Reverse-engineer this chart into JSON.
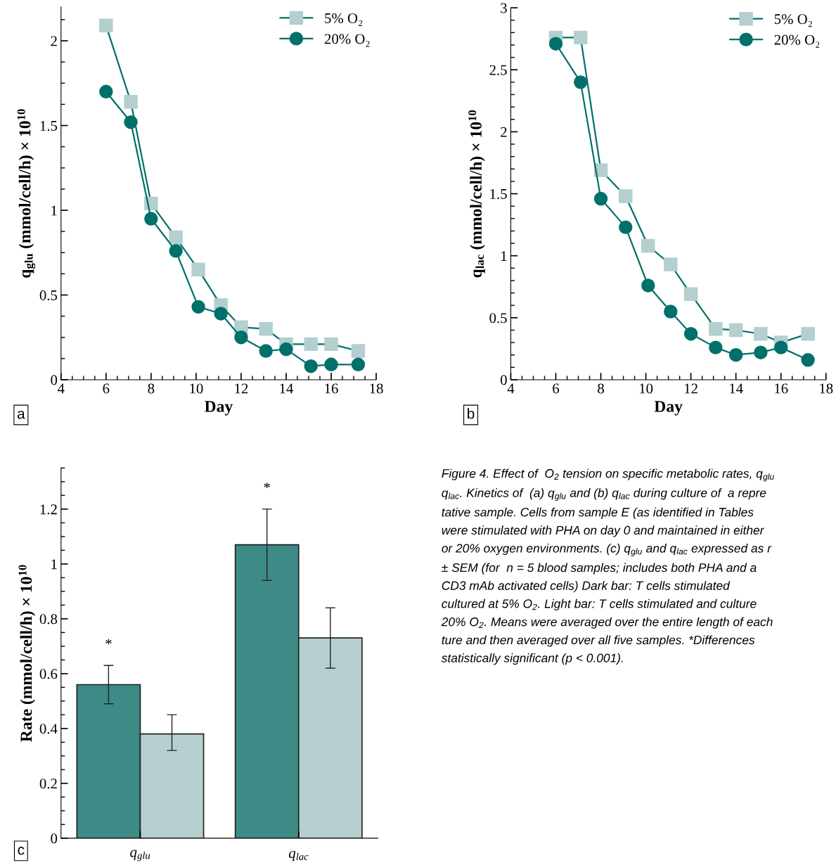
{
  "chart_data": [
    {
      "type": "line",
      "xlabel": "Day",
      "ylabel": "q$_{glu}$ (mmol/cell/h) × 10$^{10}$",
      "xlim": [
        4,
        18
      ],
      "xticks": [
        4,
        6,
        8,
        10,
        12,
        14,
        16,
        18
      ],
      "ylim": [
        0,
        2.2
      ],
      "yticks": [
        0,
        0.5,
        1,
        1.5,
        2
      ],
      "legend": "top right",
      "annotations": [
        "a"
      ],
      "series": [
        {
          "name": "5% O₂",
          "color": "#b3cfcf",
          "marker": "square",
          "x": [
            6,
            7.1,
            8,
            9.1,
            10.1,
            11.1,
            12,
            13.1,
            14,
            15.1,
            16,
            17.2
          ],
          "values": [
            2.09,
            1.64,
            1.04,
            0.84,
            0.65,
            0.44,
            0.31,
            0.3,
            0.21,
            0.21,
            0.21,
            0.17
          ]
        },
        {
          "name": "20% O₂",
          "color": "#00706b",
          "marker": "circle",
          "x": [
            6,
            7.1,
            8,
            9.1,
            10.1,
            11.1,
            12,
            13.1,
            14,
            15.1,
            16,
            17.2
          ],
          "values": [
            1.7,
            1.52,
            0.95,
            0.76,
            0.43,
            0.39,
            0.25,
            0.17,
            0.18,
            0.08,
            0.09,
            0.09
          ]
        }
      ]
    },
    {
      "type": "line",
      "xlabel": "Day",
      "ylabel": "q$_{lac}$ (mmol/cell/h) × 10$^{10}$",
      "xlim": [
        4,
        18
      ],
      "xticks": [
        4,
        6,
        8,
        10,
        12,
        14,
        16,
        18
      ],
      "ylim": [
        0,
        3
      ],
      "yticks": [
        0,
        0.5,
        1,
        1.5,
        2,
        2.5,
        3
      ],
      "legend": "top right",
      "annotations": [
        "b"
      ],
      "series": [
        {
          "name": "5% O₂",
          "color": "#b3cfcf",
          "marker": "square",
          "x": [
            6,
            7.1,
            8,
            9.1,
            10.1,
            11.1,
            12,
            13.1,
            14,
            15.1,
            16,
            17.2
          ],
          "values": [
            2.76,
            2.76,
            1.69,
            1.48,
            1.08,
            0.93,
            0.69,
            0.41,
            0.4,
            0.37,
            0.3,
            0.37
          ]
        },
        {
          "name": "20% O₂",
          "color": "#00706b",
          "marker": "circle",
          "x": [
            6,
            7.1,
            8,
            9.1,
            10.1,
            11.1,
            12,
            13.1,
            14,
            15.1,
            16,
            17.2
          ],
          "values": [
            2.71,
            2.4,
            1.46,
            1.23,
            0.76,
            0.55,
            0.37,
            0.26,
            0.2,
            0.22,
            0.26,
            0.16
          ]
        }
      ]
    },
    {
      "type": "bar",
      "ylabel": "Rate (mmol/cell/h) × 10$^{10}$",
      "categories": [
        "q$_{glu}$",
        "q$_{lac}$"
      ],
      "ylim": [
        0,
        1.35
      ],
      "yticks": [
        0,
        0.2,
        0.4,
        0.6,
        0.8,
        1,
        1.2
      ],
      "annotations": [
        "c",
        "*",
        "*"
      ],
      "series": [
        {
          "color": "#3d8a86",
          "values": [
            0.56,
            1.07
          ],
          "errors": [
            [
              0.49,
              0.63
            ],
            [
              0.94,
              1.2
            ]
          ]
        },
        {
          "color": "#b5cfcf",
          "values": [
            0.38,
            0.73
          ],
          "errors": [
            [
              0.32,
              0.45
            ],
            [
              0.62,
              0.84
            ]
          ]
        }
      ]
    },
    {
      "type": "other",
      "annotations": [
        "Figure 4. Effect of  O$_{2}$ tension on specific metabolic rates, q$_{glu}$\nq$_{lac}$. Kinetics of  (a) q$_{glu}$ and (b) q$_{lac}$ during culture of  a repre\ntative sample. Cells from sample E (as identified in Tables\nwere stimulated with PHA on day 0 and maintained in either\nor 20% oxygen environments. (c) q$_{glu}$ and q$_{lac}$ expressed as r\n± SEM (for  n = 5 blood samples; includes both PHA and a\nCD3 mAb activated cells) Dark bar: T cells stimulated\ncultured at 5% O$_{2}$. Light bar: T cells stimulated and culture\n20% O$_{2}$. Means were averaged over the entire length of each\nture and then averaged over all five samples. *Differences\nstatistically significant (p < 0.001)."
      ]
    }
  ]
}
